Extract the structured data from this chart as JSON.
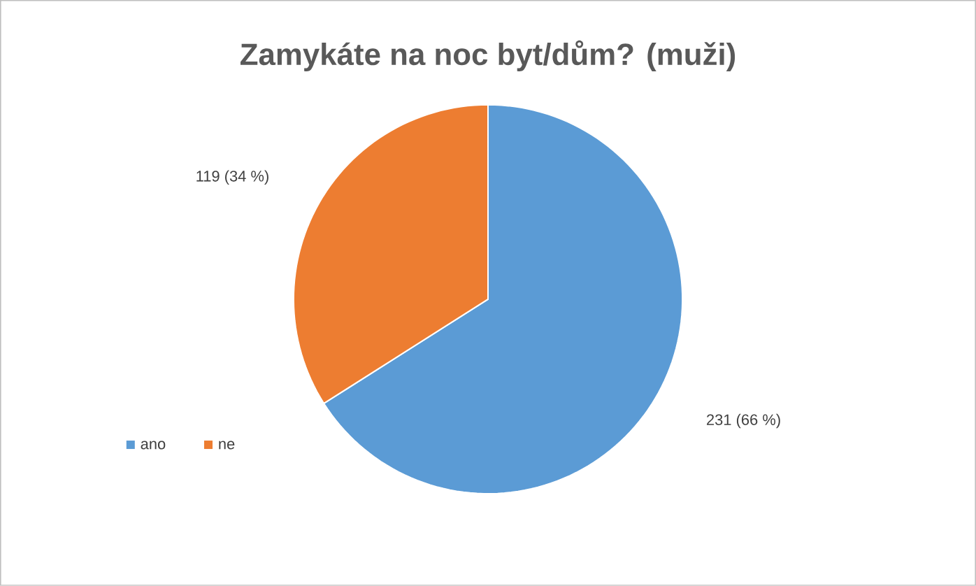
{
  "chart_data": {
    "type": "pie",
    "title": "Zamykáte na noc byt/dům? (muži)",
    "categories": [
      "ano",
      "ne"
    ],
    "values": [
      231,
      119
    ],
    "value_labels": [
      "231 (66 %)",
      "119 (34 %)"
    ],
    "colors": [
      "#5b9bd5",
      "#ed7d31"
    ],
    "legend": "bottom left"
  }
}
